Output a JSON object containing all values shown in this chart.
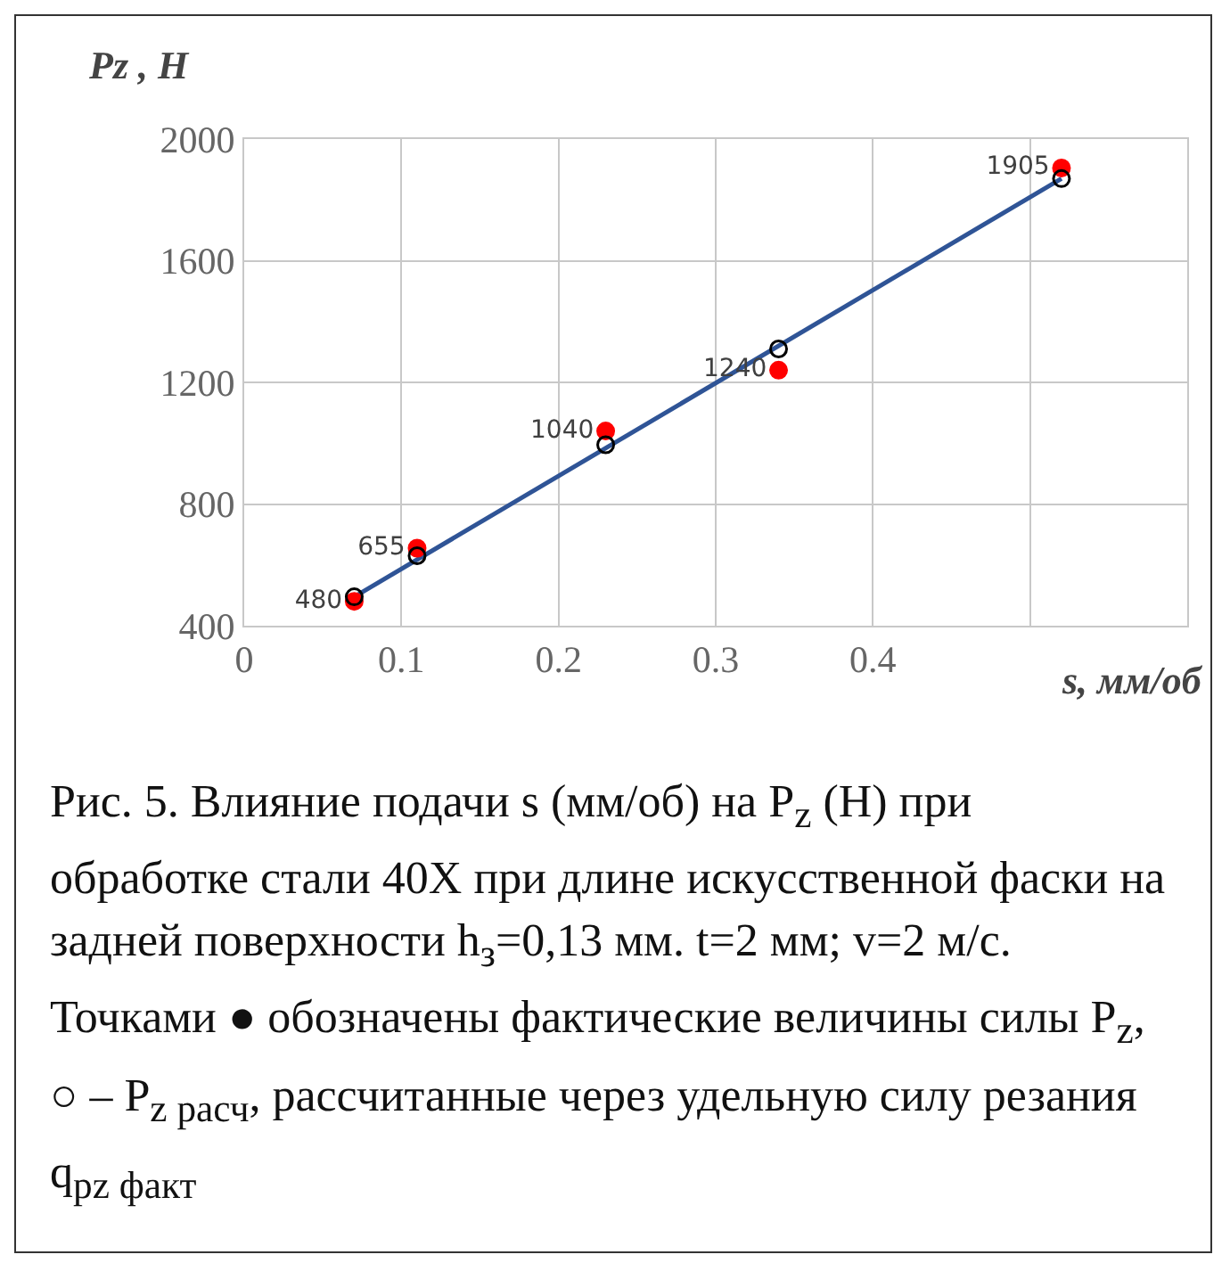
{
  "chart_data": {
    "type": "scatter",
    "xlabel": "s, мм/об",
    "ylabel": "Pz , Н",
    "xlim": [
      0,
      0.6
    ],
    "xticks": [
      0,
      0.1,
      0.2,
      0.3,
      0.4,
      {
        "value": 0.5,
        "label": null
      },
      {
        "value": 0.6,
        "label": null
      }
    ],
    "ylim": [
      400,
      2000
    ],
    "yticks": [
      400,
      800,
      1200,
      1600,
      2000
    ],
    "grid": true,
    "legend": false,
    "series": [
      {
        "name": null,
        "type": "line",
        "color": "#2f5496",
        "marker": "none",
        "line_style": "solid",
        "x": [
          0.07,
          0.52
        ],
        "values": [
          495,
          1870
        ]
      },
      {
        "color": "#ff0000",
        "marker": "circle",
        "x": [
          0.07,
          0.11,
          0.23,
          0.34,
          0.52
        ],
        "values": [
          480,
          655,
          1040,
          1240,
          1905
        ],
        "value_labels": [
          "480",
          "655",
          "1040",
          "1240",
          "1905"
        ]
      },
      {
        "color": "#000000",
        "marker": "circle-open",
        "x": [
          0.07,
          0.11,
          0.23,
          0.34,
          0.52
        ],
        "values": [
          495,
          630,
          995,
          1310,
          1870
        ]
      }
    ],
    "annotations": [
      "Рис. 5. Влияние подачи s (мм/об) на P$_{z}$ (Н) при обработке стали 40Х при длине искусственной фаски на задней поверхности h$_{з}$=0,13 мм. t=2 мм; v=2 м/с. Точками ● обозначены фактические величины силы P$_{z}$, ○ – P$_{z расч}$, рассчитанные через удельную силу резания q$_{pz факт}$"
    ]
  }
}
